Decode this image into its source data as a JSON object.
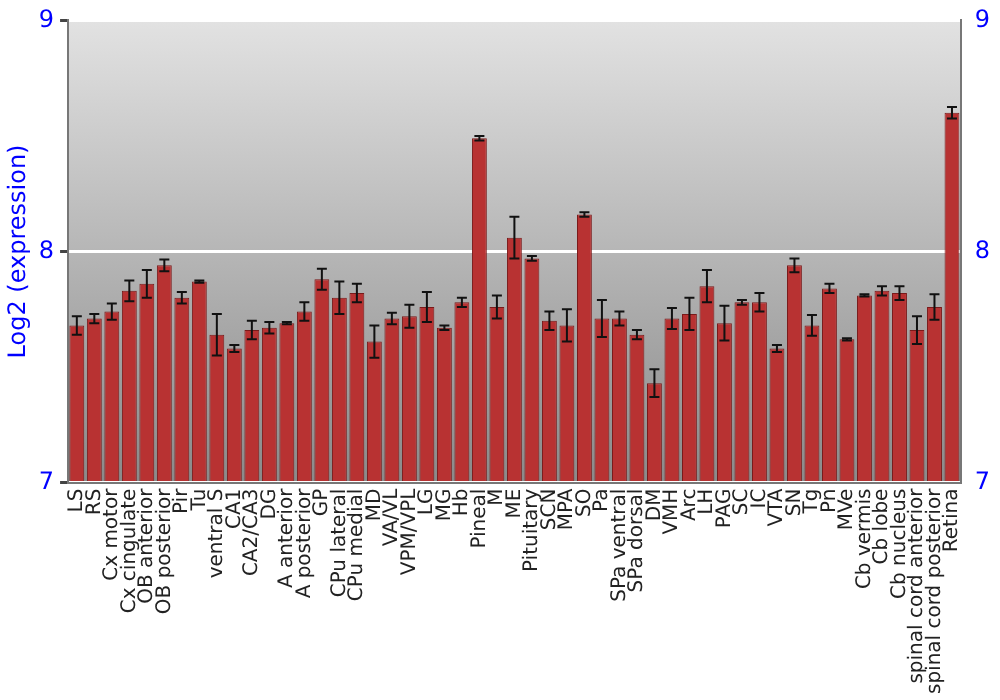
{
  "chart_data": {
    "type": "bar",
    "ylabel": "Log2 (expression)",
    "categories": [
      "LS",
      "RS",
      "Cx motor",
      "Cx cingulate",
      "OB anterior",
      "OB posterior",
      "Pir",
      "Tu",
      "ventral S",
      "CA1",
      "CA2/CA3",
      "DG",
      "A anterior",
      "A posterior",
      "GP",
      "CPu lateral",
      "CPu medial",
      "MD",
      "VA/VL",
      "VPM/VPL",
      "LG",
      "MG",
      "Hb",
      "Pineal",
      "M",
      "ME",
      "Pituitary",
      "SCN",
      "MPA",
      "SO",
      "Pa",
      "SPa ventral",
      "SPa dorsal",
      "DM",
      "VMH",
      "Arc",
      "LH",
      "PAG",
      "SC",
      "IC",
      "VTA",
      "SN",
      "Tg",
      "Pn",
      "MVe",
      "Cb vermis",
      "Cb lobe",
      "Cb nucleus",
      "spinal cord anterior",
      "spinal cord posterior",
      "Retina"
    ],
    "values": [
      7.68,
      7.71,
      7.74,
      7.83,
      7.86,
      7.94,
      7.8,
      7.87,
      7.64,
      7.58,
      7.66,
      7.67,
      7.69,
      7.74,
      7.88,
      7.8,
      7.82,
      7.61,
      7.71,
      7.72,
      7.76,
      7.67,
      7.78,
      8.49,
      7.76,
      8.06,
      7.97,
      7.7,
      7.68,
      8.16,
      7.71,
      7.71,
      7.64,
      7.43,
      7.71,
      7.73,
      7.85,
      7.69,
      7.78,
      7.78,
      7.58,
      7.94,
      7.68,
      7.84,
      7.62,
      7.81,
      7.83,
      7.82,
      7.66,
      7.76,
      8.6
    ],
    "errors": [
      0.04,
      0.02,
      0.035,
      0.045,
      0.06,
      0.025,
      0.025,
      0.005,
      0.09,
      0.015,
      0.04,
      0.025,
      0.005,
      0.04,
      0.045,
      0.07,
      0.04,
      0.07,
      0.025,
      0.05,
      0.065,
      0.01,
      0.02,
      0.01,
      0.05,
      0.09,
      0.01,
      0.04,
      0.07,
      0.01,
      0.08,
      0.03,
      0.02,
      0.06,
      0.045,
      0.07,
      0.07,
      0.075,
      0.01,
      0.04,
      0.015,
      0.03,
      0.045,
      0.02,
      0.005,
      0.005,
      0.02,
      0.03,
      0.06,
      0.055,
      0.025
    ],
    "color": "#b83232",
    "ylim": [
      7,
      9
    ],
    "yticks": [
      7,
      8,
      9
    ],
    "y2lim": [
      7,
      9
    ],
    "y2ticks": [
      7,
      8,
      9
    ],
    "grid": "y",
    "legend": false
  }
}
